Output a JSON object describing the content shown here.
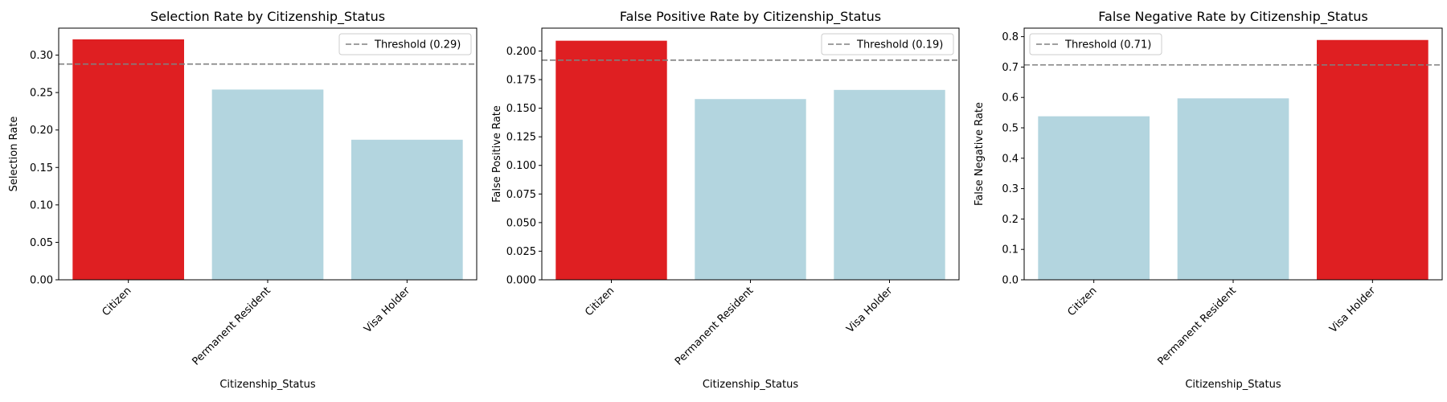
{
  "chart_data": [
    {
      "type": "bar",
      "title": "Selection Rate by Citizenship_Status",
      "xlabel": "Citizenship_Status",
      "ylabel": "Selection Rate",
      "categories": [
        "Citizen",
        "Permanent Resident",
        "Visa Holder"
      ],
      "values": [
        0.321,
        0.254,
        0.187
      ],
      "highlight": [
        true,
        false,
        false
      ],
      "ylim": [
        0,
        0.336
      ],
      "yticks": [
        "0.00",
        "0.05",
        "0.10",
        "0.15",
        "0.20",
        "0.25",
        "0.30"
      ],
      "threshold": {
        "value": 0.288,
        "label": "Threshold (0.29)"
      },
      "legend_position": "top-right",
      "grid": false
    },
    {
      "type": "bar",
      "title": "False Positive Rate by Citizenship_Status",
      "xlabel": "Citizenship_Status",
      "ylabel": "False Positive Rate",
      "categories": [
        "Citizen",
        "Permanent Resident",
        "Visa Holder"
      ],
      "values": [
        0.209,
        0.158,
        0.166
      ],
      "highlight": [
        true,
        false,
        false
      ],
      "ylim": [
        0,
        0.22
      ],
      "yticks": [
        "0.000",
        "0.025",
        "0.050",
        "0.075",
        "0.100",
        "0.125",
        "0.150",
        "0.175",
        "0.200"
      ],
      "threshold": {
        "value": 0.192,
        "label": "Threshold (0.19)"
      },
      "legend_position": "top-right",
      "grid": false
    },
    {
      "type": "bar",
      "title": "False Negative Rate by Citizenship_Status",
      "xlabel": "Citizenship_Status",
      "ylabel": "False Negative Rate",
      "categories": [
        "Citizen",
        "Permanent Resident",
        "Visa Holder"
      ],
      "values": [
        0.538,
        0.597,
        0.789
      ],
      "highlight": [
        false,
        false,
        true
      ],
      "ylim": [
        0,
        0.828
      ],
      "yticks": [
        "0.0",
        "0.1",
        "0.2",
        "0.3",
        "0.4",
        "0.5",
        "0.6",
        "0.7",
        "0.8"
      ],
      "threshold": {
        "value": 0.707,
        "label": "Threshold (0.71)"
      },
      "legend_position": "top-left",
      "grid": false
    }
  ],
  "colors": {
    "highlight_bar": "#df1f22",
    "normal_bar": "#b3d5df",
    "threshold_line": "#808080",
    "axes": "#000000",
    "legend_border": "#cccccc"
  }
}
